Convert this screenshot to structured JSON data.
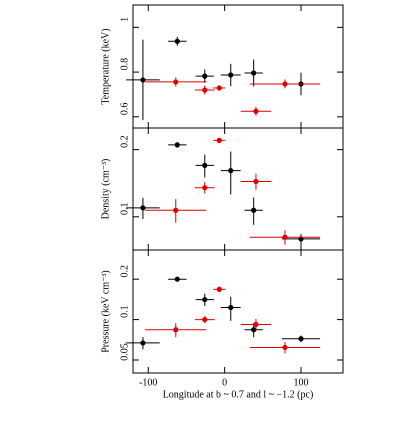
{
  "chart_data": [
    {
      "type": "scatter",
      "ylabel": "Temperature (keV)",
      "ylog": false,
      "xlim": [
        -120,
        155
      ],
      "xticks": [
        -100,
        0,
        100
      ],
      "ylim": [
        0.55,
        1.1
      ],
      "yticks": [
        0.6,
        0.8,
        1
      ],
      "series": [
        {
          "color": "#000000",
          "x": [
            -107,
            -62,
            -26,
            8,
            38,
            100
          ],
          "xerr": [
            22,
            12,
            12,
            13,
            12,
            25
          ],
          "values": [
            0.765,
            0.938,
            0.782,
            0.787,
            0.796,
            0.747
          ],
          "yerr": [
            0.18,
            0.02,
            0.03,
            0.05,
            0.06,
            0.05
          ]
        },
        {
          "color": "#e00000",
          "x": [
            -64,
            -26,
            -7,
            41,
            79
          ],
          "xerr": [
            40,
            13,
            8,
            20,
            46
          ],
          "values": [
            0.756,
            0.72,
            0.729,
            0.625,
            0.747
          ],
          "yerr": [
            0.02,
            0.02,
            0.01,
            0.02,
            0.02
          ]
        }
      ]
    },
    {
      "type": "scatter",
      "ylabel": "Density (cm⁻³)",
      "ylog": true,
      "xlim": [
        -120,
        155
      ],
      "xticks": [
        -100,
        0,
        100
      ],
      "ylim": [
        0.071,
        0.25
      ],
      "yticks": [
        0.1,
        0.2
      ],
      "series": [
        {
          "color": "#000000",
          "x": [
            -107,
            -62,
            -26,
            8,
            38,
            100
          ],
          "xerr": [
            22,
            12,
            12,
            13,
            12,
            25
          ],
          "values": [
            0.1097,
            0.21,
            0.17,
            0.161,
            0.107,
            0.0796
          ],
          "yerr": [
            0.012,
            0.006,
            0.02,
            0.035,
            0.015,
            0.004
          ]
        },
        {
          "color": "#e00000",
          "x": [
            -64,
            -26,
            -7,
            41,
            79
          ],
          "xerr": [
            40,
            13,
            8,
            20,
            46
          ],
          "values": [
            0.107,
            0.135,
            0.22,
            0.144,
            0.081
          ],
          "yerr": [
            0.013,
            0.008,
            0.006,
            0.012,
            0.006
          ]
        }
      ]
    },
    {
      "type": "scatter",
      "ylabel": "Pressure (keV cm⁻³)",
      "ylog": true,
      "xlabel": "Longitude at b ~ 0.7 and l ~ −1.2 (pc)",
      "xlim": [
        -120,
        155
      ],
      "xticks": [
        -100,
        0,
        100
      ],
      "ylim": [
        0.04,
        0.33
      ],
      "yticks": [
        0.05,
        0.1,
        0.2
      ],
      "series": [
        {
          "color": "#000000",
          "x": [
            -107,
            -62,
            -26,
            8,
            38,
            100
          ],
          "xerr": [
            22,
            12,
            12,
            13,
            12,
            25
          ],
          "values": [
            0.067,
            0.2,
            0.141,
            0.123,
            0.084,
            0.072
          ],
          "yerr": [
            0.007,
            0.007,
            0.015,
            0.025,
            0.01,
            0.004
          ]
        },
        {
          "color": "#e00000",
          "x": [
            -64,
            -26,
            -7,
            41,
            79
          ],
          "xerr": [
            40,
            13,
            8,
            20,
            46
          ],
          "values": [
            0.084,
            0.1,
            0.168,
            0.092,
            0.062
          ],
          "yerr": [
            0.01,
            0.006,
            0.008,
            0.009,
            0.006
          ]
        }
      ]
    }
  ]
}
